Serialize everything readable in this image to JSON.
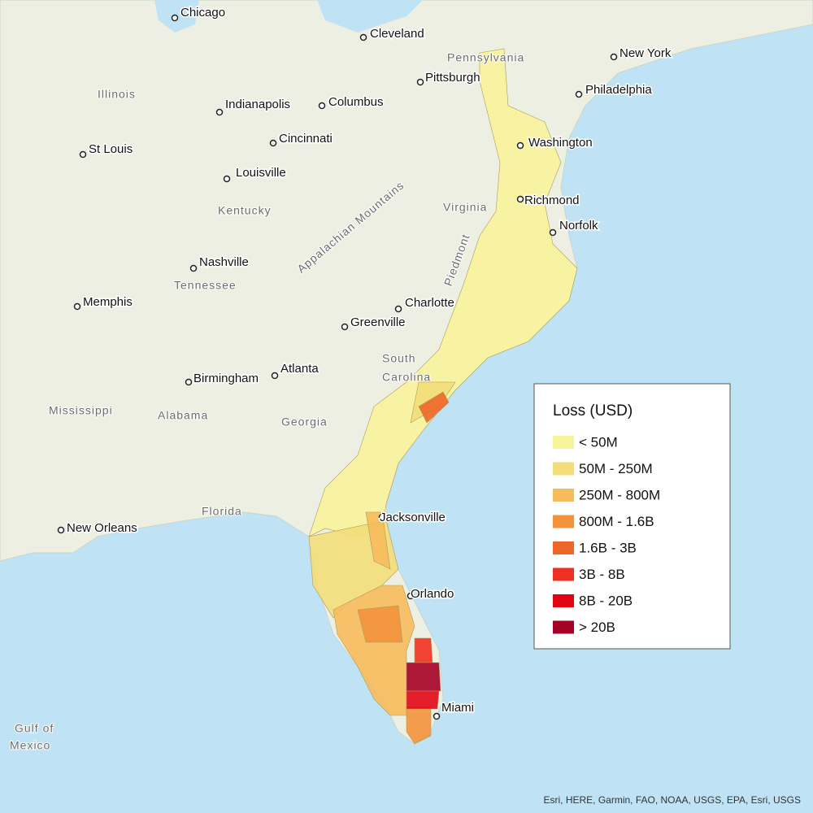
{
  "legend": {
    "title": "Loss (USD)",
    "items": [
      {
        "label": "< 50M",
        "color": "#f7f39b"
      },
      {
        "label": "50M - 250M",
        "color": "#f3dd79"
      },
      {
        "label": "250M - 800M",
        "color": "#f6bb5b"
      },
      {
        "label": "800M - 1.6B",
        "color": "#f3923c"
      },
      {
        "label": "1.6B - 3B",
        "color": "#ee6628"
      },
      {
        "label": "3B - 8B",
        "color": "#f03020"
      },
      {
        "label": "8B - 20B",
        "color": "#e10514"
      },
      {
        "label": "> 20B",
        "color": "#a50026"
      }
    ]
  },
  "cities": [
    {
      "label": "Chicago"
    },
    {
      "label": "Cleveland"
    },
    {
      "label": "New York"
    },
    {
      "label": "Pittsburgh"
    },
    {
      "label": "Philadelphia"
    },
    {
      "label": "Indianapolis"
    },
    {
      "label": "Columbus"
    },
    {
      "label": "Cincinnati"
    },
    {
      "label": "St Louis"
    },
    {
      "label": "Louisville"
    },
    {
      "label": "Washington"
    },
    {
      "label": "Richmond"
    },
    {
      "label": "Norfolk"
    },
    {
      "label": "Nashville"
    },
    {
      "label": "Memphis"
    },
    {
      "label": "Charlotte"
    },
    {
      "label": "Greenville"
    },
    {
      "label": "Atlanta"
    },
    {
      "label": "Birmingham"
    },
    {
      "label": "Jacksonville"
    },
    {
      "label": "Orlando"
    },
    {
      "label": "Miami"
    },
    {
      "label": "New Orleans"
    }
  ],
  "regions": [
    {
      "label": "Illinois"
    },
    {
      "label": "Pennsylvania"
    },
    {
      "label": "Kentucky"
    },
    {
      "label": "Virginia"
    },
    {
      "label": "Tennessee"
    },
    {
      "label": "Mississippi"
    },
    {
      "label": "Alabama"
    },
    {
      "label": "Georgia"
    },
    {
      "label": "South"
    },
    {
      "label": "Carolina"
    },
    {
      "label": "Florida"
    },
    {
      "label": "Appalachian Mountains"
    },
    {
      "label": "Piedmont"
    },
    {
      "label": "Gulf of"
    },
    {
      "label": "Mexico"
    }
  ],
  "attribution": "Esri, HERE, Garmin, FAO, NOAA, USGS, EPA, Esri, USGS"
}
